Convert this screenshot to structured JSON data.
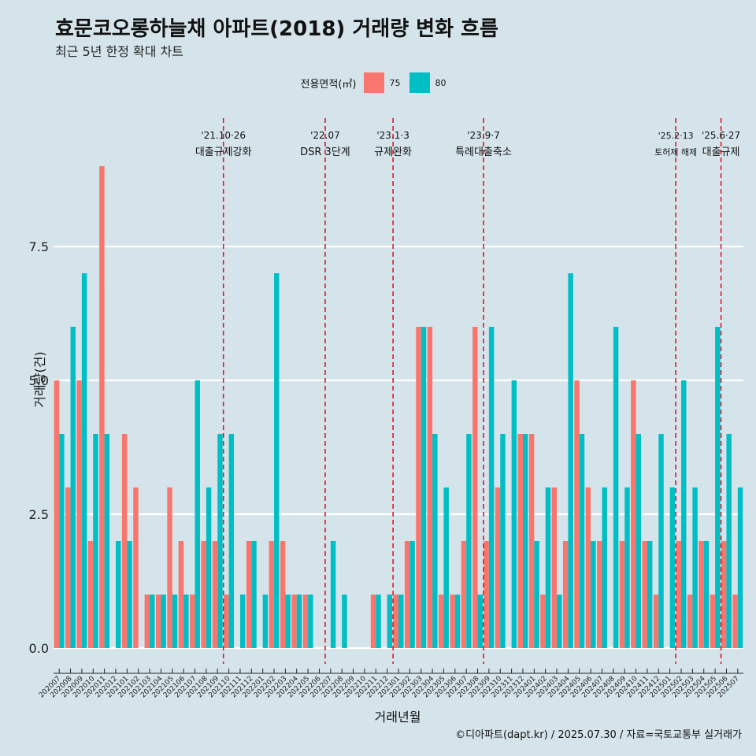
{
  "chart_data": {
    "type": "bar",
    "title": "효문코오롱하늘채 아파트(2018) 거래량 변화 흐름",
    "subtitle": "최근 5년 한정 확대 차트",
    "xlabel": "거래년월",
    "ylabel": "거래량(건)",
    "legend_title": "전용면적(㎡)",
    "caption": "©디아파트(dapt.kr) / 2025.07.30 / 자료=국토교통부 실거래가",
    "ylim": [
      0,
      9.5
    ],
    "yticks": [
      0,
      2.5,
      5,
      7.5
    ],
    "ytick_labels": [
      "0.0",
      "2.5",
      "5.0",
      "7.5"
    ],
    "colors": {
      "75": "#f8766d",
      "80": "#00bfc4",
      "vline": "#e8141f"
    },
    "categories": [
      "202007",
      "202008",
      "202009",
      "202010",
      "202011",
      "202012",
      "202101",
      "202102",
      "202103",
      "202104",
      "202105",
      "202106",
      "202107",
      "202108",
      "202109",
      "202110",
      "202111",
      "202112",
      "202201",
      "202202",
      "202203",
      "202204",
      "202205",
      "202206",
      "202207",
      "202208",
      "202209",
      "202210",
      "202211",
      "202212",
      "202301",
      "202302",
      "202303",
      "202304",
      "202305",
      "202306",
      "202307",
      "202308",
      "202309",
      "202310",
      "202311",
      "202312",
      "202401",
      "202402",
      "202403",
      "202404",
      "202405",
      "202406",
      "202407",
      "202408",
      "202409",
      "202410",
      "202411",
      "202412",
      "202501",
      "202502",
      "202503",
      "202504",
      "202505",
      "202506",
      "202507"
    ],
    "series": [
      {
        "name": "75",
        "values": [
          5,
          3,
          5,
          2,
          9,
          0,
          4,
          3,
          1,
          1,
          3,
          2,
          1,
          2,
          2,
          1,
          0,
          2,
          0,
          2,
          2,
          1,
          1,
          0,
          0,
          0,
          0,
          0,
          1,
          0,
          1,
          2,
          6,
          6,
          1,
          1,
          2,
          6,
          2,
          3,
          0,
          4,
          4,
          1,
          3,
          2,
          5,
          3,
          2,
          0,
          2,
          5,
          2,
          1,
          0,
          2,
          1,
          2,
          1,
          2,
          1
        ]
      },
      {
        "name": "80",
        "values": [
          4,
          6,
          7,
          4,
          4,
          2,
          2,
          0,
          1,
          1,
          1,
          1,
          5,
          3,
          4,
          4,
          1,
          2,
          1,
          7,
          1,
          1,
          1,
          0,
          2,
          1,
          0,
          0,
          1,
          1,
          1,
          2,
          6,
          4,
          3,
          1,
          4,
          1,
          6,
          4,
          5,
          4,
          2,
          3,
          1,
          7,
          4,
          2,
          3,
          6,
          3,
          4,
          2,
          4,
          3,
          5,
          3,
          2,
          6,
          4,
          3
        ]
      }
    ],
    "events": [
      {
        "category": "202110",
        "date": "'21.10·26",
        "label": "대출규제강화"
      },
      {
        "category": "202207",
        "date": "'22.07",
        "label": "DSR 3단계"
      },
      {
        "category": "202301",
        "date": "'23.1·3",
        "label": "규제완화"
      },
      {
        "category": "202309",
        "date": "'23.9·7",
        "label": "특례대출축소"
      },
      {
        "category": "202502",
        "date": "'25.2·13",
        "label": "토허제 해제"
      },
      {
        "category": "202506",
        "date": "'25.6·27",
        "label": "대출규제"
      }
    ]
  }
}
